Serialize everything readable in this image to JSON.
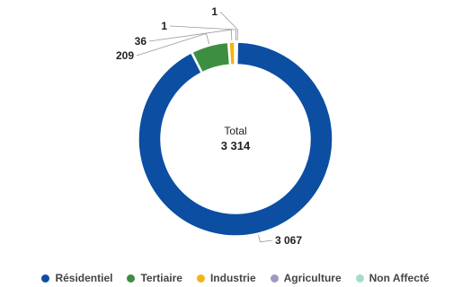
{
  "chart_data": {
    "type": "pie",
    "variant": "donut",
    "center_label": "Total",
    "center_value": "3 314",
    "categories": [
      "Résidentiel",
      "Tertiaire",
      "Industrie",
      "Agriculture",
      "Non Affecté"
    ],
    "values": [
      3067,
      209,
      36,
      1,
      1
    ],
    "value_labels": [
      "3 067",
      "209",
      "36",
      "1",
      "1"
    ],
    "colors": [
      "#0b4ea2",
      "#3e8e41",
      "#f2b418",
      "#9c9cc0",
      "#a8dcc8"
    ],
    "legend_position": "bottom"
  }
}
